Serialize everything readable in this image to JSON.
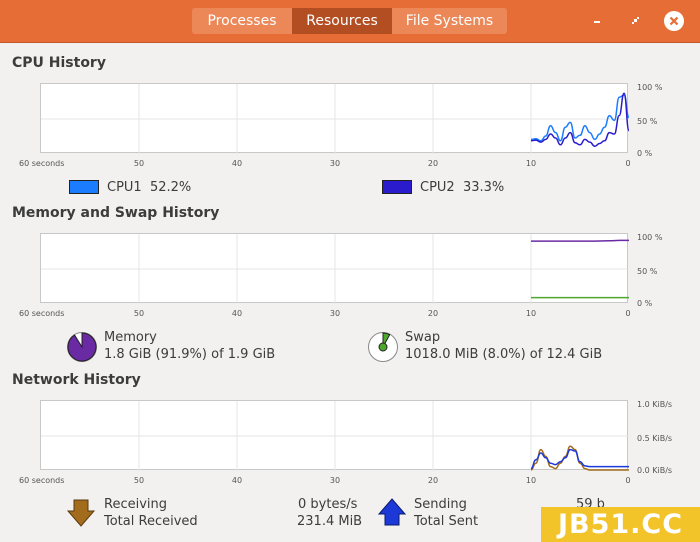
{
  "tabs": [
    {
      "label": "Processes"
    },
    {
      "label": "Resources"
    },
    {
      "label": "File Systems"
    }
  ],
  "colors": {
    "headerbar": "#e66e36",
    "tab_active": "#b34d22",
    "cpu1": "#1c7cff",
    "cpu2": "#2a1ccc",
    "memory": "#6a2aa3",
    "swap": "#4fa82e",
    "receiving": "#a36b1c",
    "sending": "#1c38d6"
  },
  "window_controls": {
    "minimize_icon": "minimize-icon",
    "restore_icon": "restore-icon",
    "close_icon": "close-icon"
  },
  "x_axis_ticks": [
    "60 seconds",
    "50",
    "40",
    "30",
    "20",
    "10",
    "0"
  ],
  "cpu": {
    "title": "CPU History",
    "y_ticks": [
      "100 %",
      "50 %",
      "0 %"
    ],
    "legend": [
      {
        "name": "CPU1",
        "value": "52.2%"
      },
      {
        "name": "CPU2",
        "value": "33.3%"
      }
    ]
  },
  "memory": {
    "title": "Memory and Swap History",
    "y_ticks": [
      "100 %",
      "50 %",
      "0 %"
    ],
    "memory_label": "Memory",
    "memory_value": "1.8 GiB (91.9%) of 1.9 GiB",
    "swap_label": "Swap",
    "swap_value": "1018.0 MiB (8.0%) of 12.4 GiB"
  },
  "network": {
    "title": "Network History",
    "y_ticks": [
      "1.0 KiB/s",
      "0.5 KiB/s",
      "0.0 KiB/s"
    ],
    "receiving_label": "Receiving",
    "receiving_rate": "0 bytes/s",
    "total_received_label": "Total Received",
    "total_received": "231.4 MiB",
    "sending_label": "Sending",
    "sending_rate": "59 b",
    "total_sent_label": "Total Sent"
  },
  "chart_data": [
    {
      "type": "line",
      "title": "CPU History",
      "x": [
        10,
        9.5,
        9,
        8.5,
        8,
        7.5,
        7,
        6.5,
        6,
        5.5,
        5,
        4.5,
        4,
        3.5,
        3,
        2.5,
        2,
        1.5,
        1,
        0.5,
        0
      ],
      "xlim": [
        60,
        0
      ],
      "ylim": [
        0,
        100
      ],
      "series": [
        {
          "name": "CPU1",
          "values": [
            20,
            21,
            18,
            25,
            40,
            30,
            18,
            38,
            45,
            22,
            26,
            40,
            30,
            20,
            28,
            38,
            55,
            48,
            82,
            85,
            52
          ]
        },
        {
          "name": "CPU2",
          "values": [
            18,
            19,
            16,
            20,
            28,
            22,
            12,
            22,
            30,
            15,
            12,
            20,
            16,
            10,
            14,
            18,
            30,
            28,
            55,
            88,
            33
          ]
        }
      ]
    },
    {
      "type": "line",
      "title": "Memory and Swap History",
      "x": [
        10,
        8,
        6,
        4,
        2,
        1,
        0
      ],
      "xlim": [
        60,
        0
      ],
      "ylim": [
        0,
        100
      ],
      "series": [
        {
          "name": "Memory",
          "values": [
            91,
            91,
            91,
            91,
            91.5,
            92,
            92
          ]
        },
        {
          "name": "Swap",
          "values": [
            8,
            8,
            8,
            8,
            8,
            8,
            8
          ]
        }
      ]
    },
    {
      "type": "line",
      "title": "Network History",
      "x": [
        10,
        9.5,
        9,
        8.5,
        8,
        7.5,
        7,
        6.5,
        6,
        5.5,
        5,
        4.5,
        4,
        3.5,
        3,
        2.5,
        2,
        1.5,
        1,
        0.5,
        0
      ],
      "xlim": [
        60,
        0
      ],
      "ylim": [
        0,
        1.0
      ],
      "series": [
        {
          "name": "Receiving",
          "values": [
            0.0,
            0.1,
            0.3,
            0.2,
            0.05,
            0.02,
            0.1,
            0.2,
            0.35,
            0.3,
            0.1,
            0.02,
            0.0,
            0.0,
            0.0,
            0.0,
            0.0,
            0.0,
            0.0,
            0.0,
            0.0
          ]
        },
        {
          "name": "Sending",
          "values": [
            0.02,
            0.15,
            0.25,
            0.18,
            0.1,
            0.08,
            0.12,
            0.18,
            0.3,
            0.28,
            0.12,
            0.06,
            0.05,
            0.05,
            0.05,
            0.05,
            0.05,
            0.05,
            0.05,
            0.05,
            0.05
          ]
        }
      ]
    }
  ]
}
